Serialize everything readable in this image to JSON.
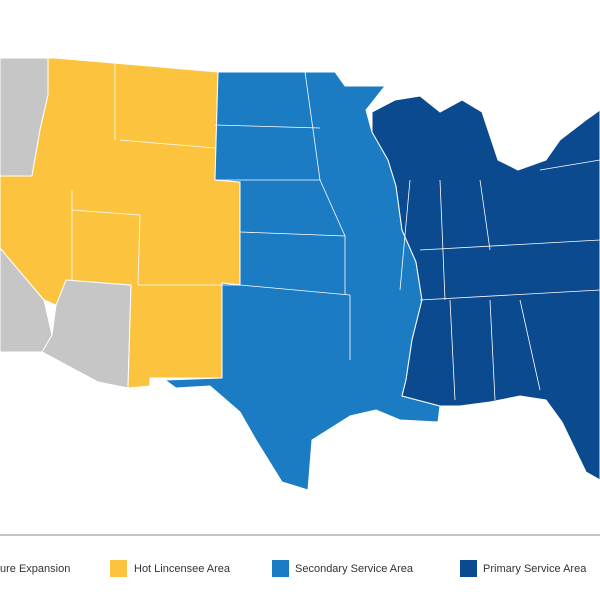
{
  "legend": [
    {
      "label": "ure Expansion",
      "color": "#c6c6c6"
    },
    {
      "label": "Hot Lincensee Area",
      "color": "#fcc43e"
    },
    {
      "label": "Secondary Service Area",
      "color": "#1b7bc3"
    },
    {
      "label": "Primary Service Area",
      "color": "#0b4a8f"
    }
  ]
}
